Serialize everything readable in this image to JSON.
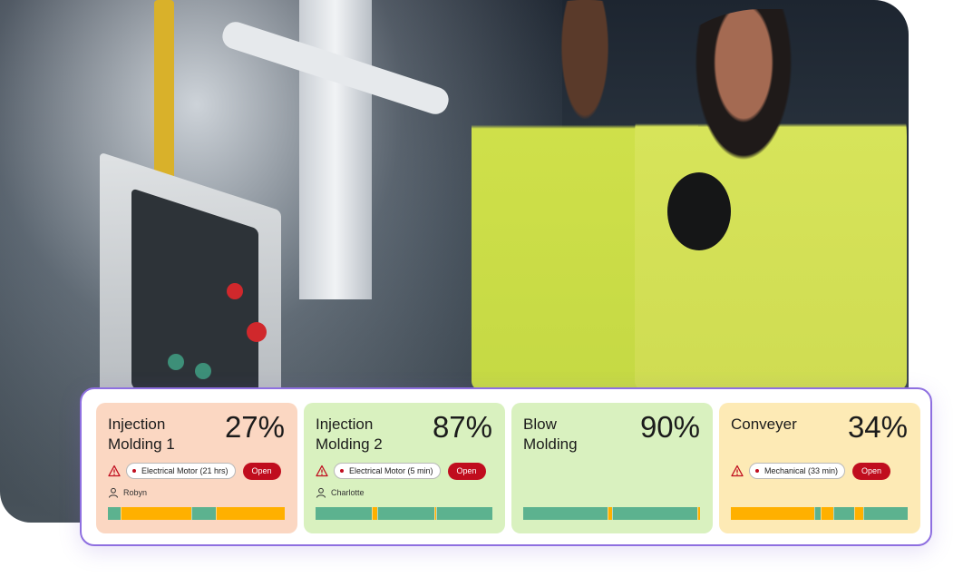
{
  "colors": {
    "running": "#5cb28f",
    "idle": "#ffb000",
    "accent": "#8e6fe0",
    "open": "#c00d1e"
  },
  "machines": [
    {
      "name_line1": "Injection",
      "name_line2": "Molding 1",
      "percent": "27%",
      "issue": "Electrical Motor (21 hrs)",
      "action": "Open",
      "operator": "Robyn",
      "timeline": [
        [
          "running",
          0.07
        ],
        [
          "idle",
          0.4
        ],
        [
          "running",
          0.14
        ],
        [
          "idle",
          0.39
        ]
      ]
    },
    {
      "name_line1": "Injection",
      "name_line2": "Molding 2",
      "percent": "87%",
      "issue": "Electrical Motor (5 min)",
      "action": "Open",
      "operator": "Charlotte",
      "timeline": [
        [
          "running",
          0.32
        ],
        [
          "idle",
          0.03
        ],
        [
          "running",
          0.32
        ],
        [
          "idle",
          0.01
        ],
        [
          "running",
          0.32
        ]
      ]
    },
    {
      "name_line1": "Blow",
      "name_line2": "Molding",
      "percent": "90%",
      "timeline": [
        [
          "running",
          0.475
        ],
        [
          "idle",
          0.025
        ],
        [
          "running",
          0.485
        ],
        [
          "idle",
          0.015
        ]
      ]
    },
    {
      "name_line1": "Conveyer",
      "name_line2": "",
      "percent": "34%",
      "issue": "Mechanical (33 min)",
      "action": "Open",
      "timeline": [
        [
          "idle",
          0.47
        ],
        [
          "running",
          0.04
        ],
        [
          "idle",
          0.07
        ],
        [
          "running",
          0.12
        ],
        [
          "idle",
          0.05
        ],
        [
          "running",
          0.25
        ]
      ]
    }
  ]
}
